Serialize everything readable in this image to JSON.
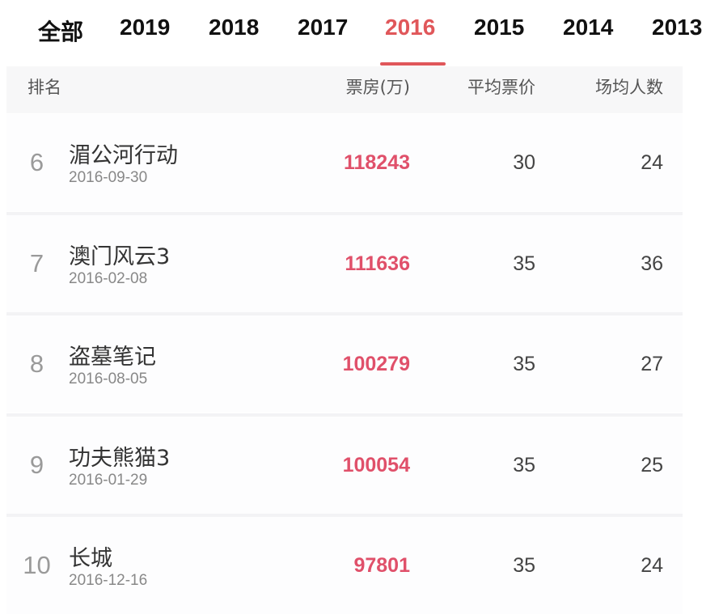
{
  "tabs": {
    "items": [
      {
        "label": "全部"
      },
      {
        "label": "2019"
      },
      {
        "label": "2018"
      },
      {
        "label": "2017"
      },
      {
        "label": "2016"
      },
      {
        "label": "2015"
      },
      {
        "label": "2014"
      },
      {
        "label": "2013"
      }
    ],
    "active_index": 4,
    "accent_color": "#e0575a"
  },
  "table": {
    "headers": {
      "rank": "排名",
      "box_office": "票房(万)",
      "avg_price": "平均票价",
      "avg_attendance": "场均人数"
    },
    "rows": [
      {
        "rank": "6",
        "title": "湄公河行动",
        "date": "2016-09-30",
        "box_office": "118243",
        "avg_price": "30",
        "avg_attendance": "24"
      },
      {
        "rank": "7",
        "title": "澳门风云3",
        "date": "2016-02-08",
        "box_office": "111636",
        "avg_price": "35",
        "avg_attendance": "36"
      },
      {
        "rank": "8",
        "title": "盗墓笔记",
        "date": "2016-08-05",
        "box_office": "100279",
        "avg_price": "35",
        "avg_attendance": "27"
      },
      {
        "rank": "9",
        "title": "功夫熊猫3",
        "date": "2016-01-29",
        "box_office": "100054",
        "avg_price": "35",
        "avg_attendance": "25"
      },
      {
        "rank": "10",
        "title": "长城",
        "date": "2016-12-16",
        "box_office": "97801",
        "avg_price": "35",
        "avg_attendance": "24"
      }
    ]
  }
}
